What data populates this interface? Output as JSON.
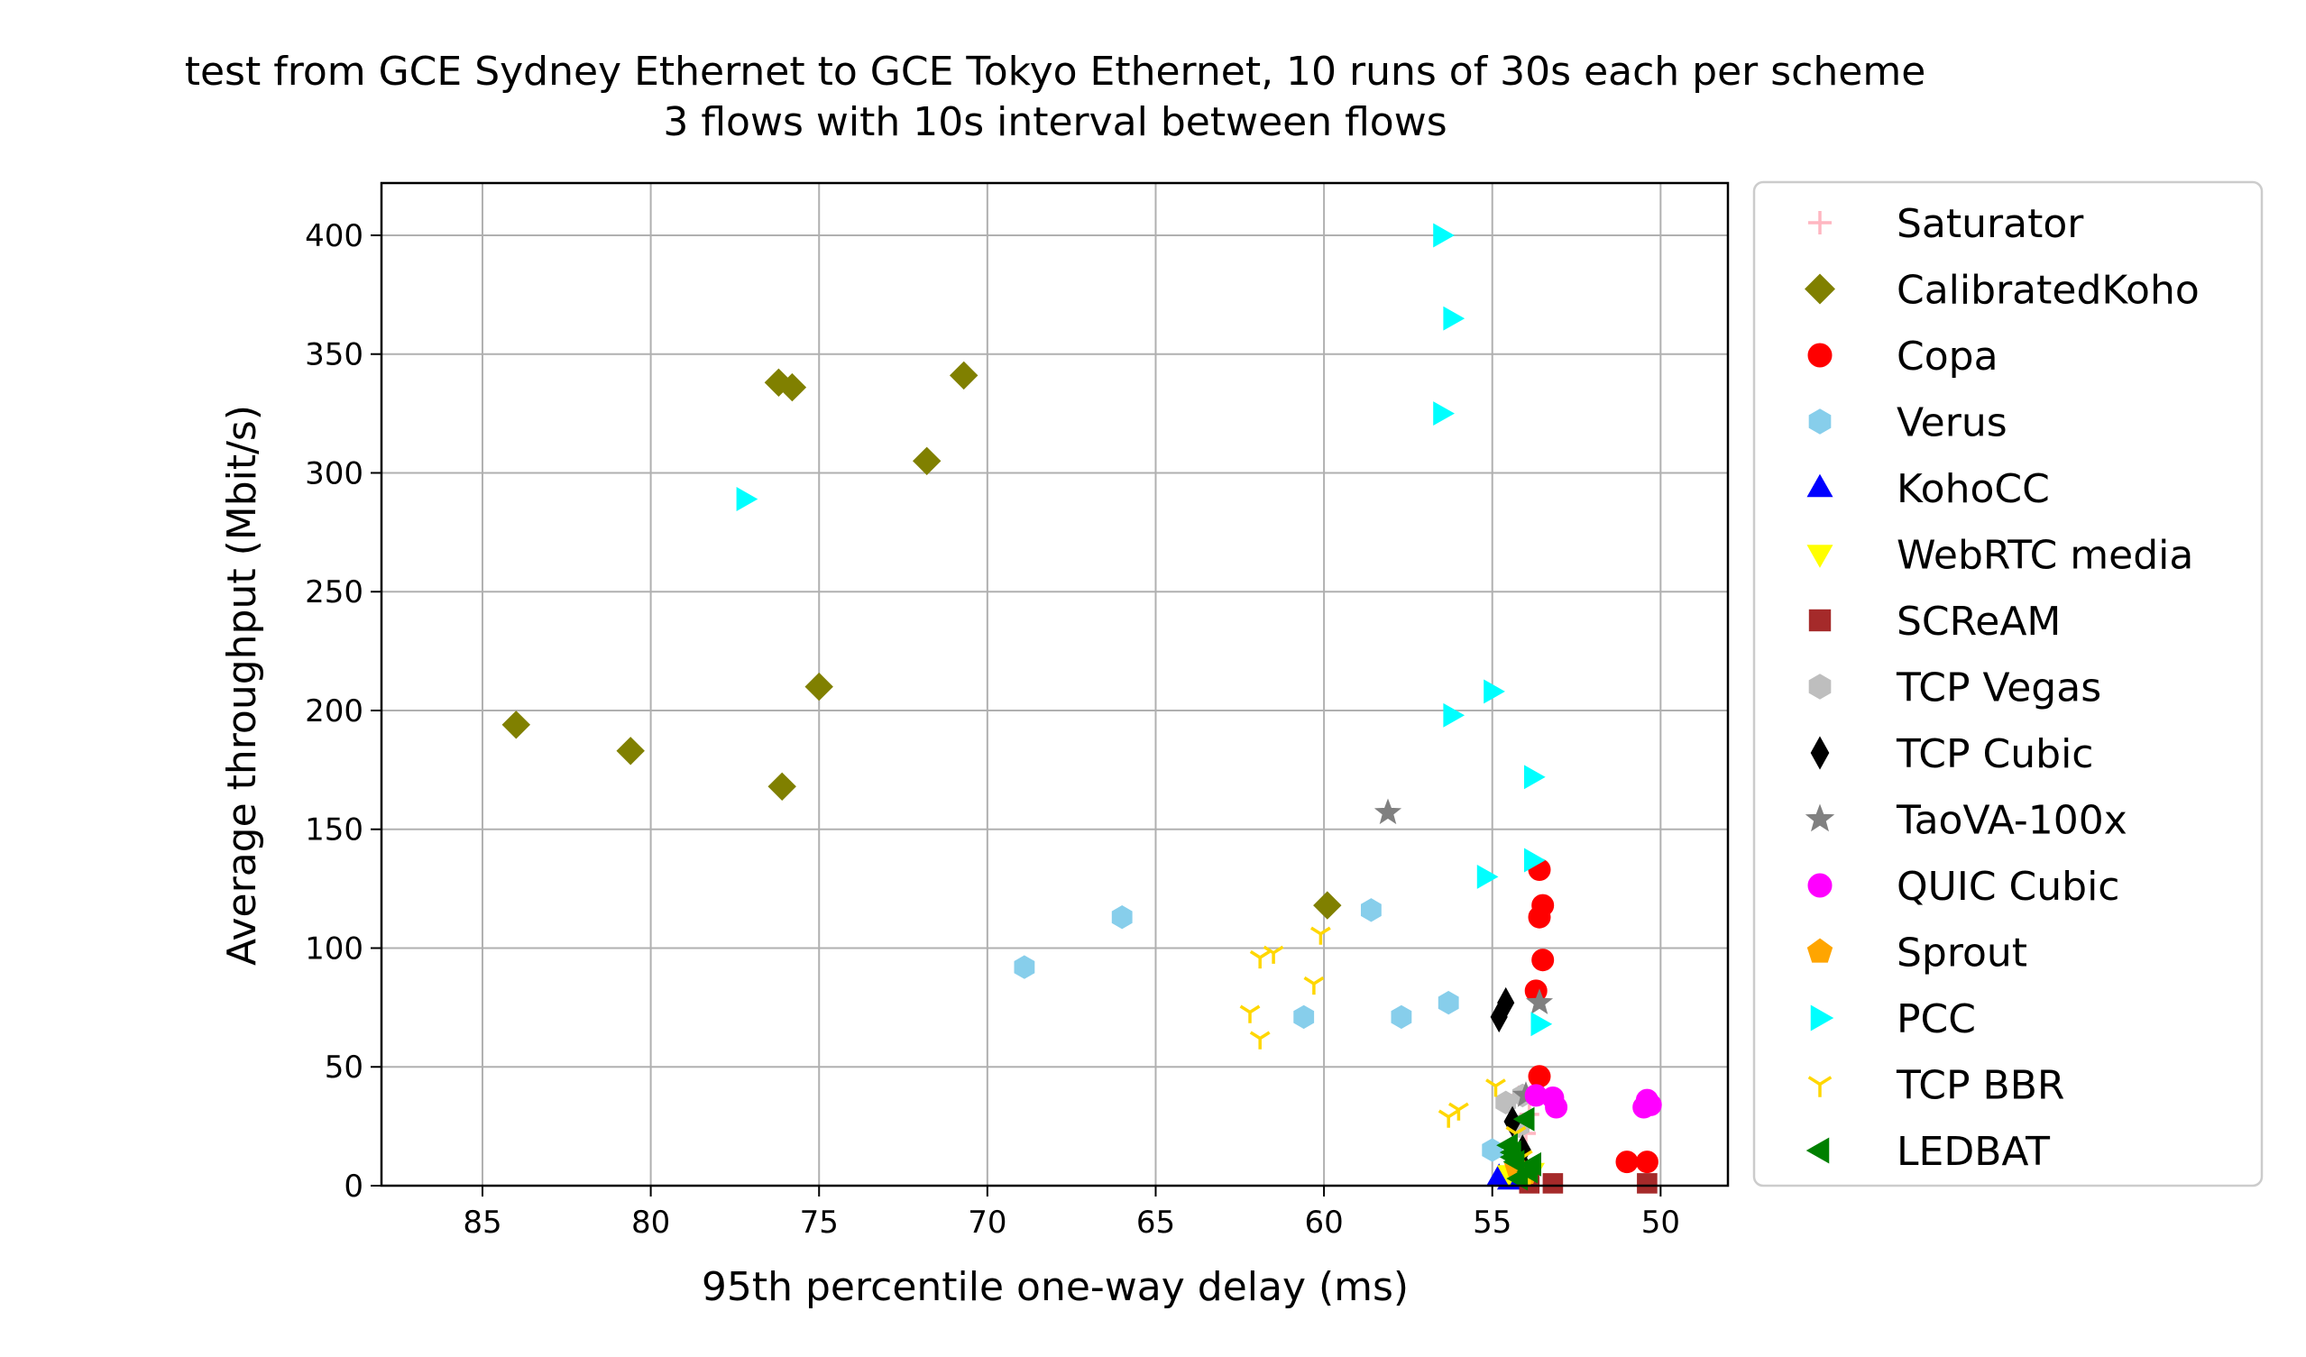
{
  "chart_data": {
    "type": "scatter",
    "title": "test from GCE Sydney Ethernet to GCE Tokyo Ethernet, 10 runs of 30s each per scheme",
    "subtitle": "3 flows with 10s interval between flows",
    "xlabel": "95th percentile one-way delay (ms)",
    "ylabel": "Average throughput (Mbit/s)",
    "x_inverted": true,
    "xlim": [
      88,
      48
    ],
    "ylim": [
      0,
      422
    ],
    "xticks": [
      85,
      80,
      75,
      70,
      65,
      60,
      55,
      50
    ],
    "yticks": [
      0,
      50,
      100,
      150,
      200,
      250,
      300,
      350,
      400
    ],
    "grid": true,
    "legend_position": "outside-right",
    "series": [
      {
        "name": "Saturator",
        "marker": "plus",
        "color": "#ffb6c1",
        "points": [
          [
            54.2,
            38
          ],
          [
            54.0,
            22
          ],
          [
            53.9,
            30
          ]
        ]
      },
      {
        "name": "CalibratedKoho",
        "marker": "diamond",
        "color": "#808000",
        "points": [
          [
            84.0,
            194
          ],
          [
            80.6,
            183
          ],
          [
            76.2,
            338
          ],
          [
            75.8,
            336
          ],
          [
            76.1,
            168
          ],
          [
            75.0,
            210
          ],
          [
            71.8,
            305
          ],
          [
            70.7,
            341
          ],
          [
            59.9,
            118
          ]
        ]
      },
      {
        "name": "Copa",
        "marker": "circle",
        "color": "#ff0000",
        "points": [
          [
            53.6,
            133
          ],
          [
            53.5,
            118
          ],
          [
            53.6,
            113
          ],
          [
            53.5,
            95
          ],
          [
            53.7,
            82
          ],
          [
            53.6,
            46
          ],
          [
            51.0,
            10
          ],
          [
            50.4,
            10
          ]
        ]
      },
      {
        "name": "Verus",
        "marker": "hexagon",
        "color": "#87ceeb",
        "points": [
          [
            68.9,
            92
          ],
          [
            66.0,
            113
          ],
          [
            60.6,
            71
          ],
          [
            58.6,
            116
          ],
          [
            57.7,
            71
          ],
          [
            56.3,
            77
          ],
          [
            55.0,
            15
          ]
        ]
      },
      {
        "name": "KohoCC",
        "marker": "triangle-up",
        "color": "#0000ff",
        "points": [
          [
            54.8,
            4
          ],
          [
            54.5,
            2
          ],
          [
            54.4,
            7
          ]
        ]
      },
      {
        "name": "WebRTC media",
        "marker": "triangle-down",
        "color": "#ffff00",
        "points": [
          [
            54.5,
            5
          ],
          [
            54.1,
            4
          ],
          [
            53.8,
            6
          ]
        ]
      },
      {
        "name": "SCReAM",
        "marker": "square",
        "color": "#a52a2a",
        "points": [
          [
            53.9,
            1
          ],
          [
            53.2,
            1
          ],
          [
            50.4,
            1
          ]
        ]
      },
      {
        "name": "TCP Vegas",
        "marker": "hexagon",
        "color": "#bebebe",
        "points": [
          [
            54.6,
            35
          ],
          [
            54.2,
            25
          ],
          [
            54.1,
            38
          ]
        ]
      },
      {
        "name": "TCP Cubic",
        "marker": "thin-diamond",
        "color": "#000000",
        "points": [
          [
            54.8,
            71
          ],
          [
            54.6,
            77
          ],
          [
            54.4,
            27
          ],
          [
            54.1,
            15
          ],
          [
            54.0,
            6
          ]
        ]
      },
      {
        "name": "TaoVA-100x",
        "marker": "star",
        "color": "#808080",
        "points": [
          [
            58.1,
            157
          ],
          [
            53.6,
            77
          ],
          [
            54.0,
            38
          ]
        ]
      },
      {
        "name": "QUIC Cubic",
        "marker": "circle",
        "color": "#ff00ff",
        "points": [
          [
            53.7,
            38
          ],
          [
            53.2,
            37
          ],
          [
            53.1,
            33
          ],
          [
            50.4,
            36
          ],
          [
            50.5,
            33
          ],
          [
            50.3,
            34
          ]
        ]
      },
      {
        "name": "Sprout",
        "marker": "pentagon",
        "color": "#ffa500",
        "points": [
          [
            54.3,
            8
          ],
          [
            54.0,
            5
          ]
        ]
      },
      {
        "name": "PCC",
        "marker": "triangle-right",
        "color": "#00ffff",
        "points": [
          [
            56.5,
            400
          ],
          [
            56.2,
            365
          ],
          [
            56.5,
            325
          ],
          [
            77.2,
            289
          ],
          [
            55.0,
            208
          ],
          [
            56.2,
            198
          ],
          [
            53.8,
            172
          ],
          [
            53.8,
            137
          ],
          [
            55.2,
            130
          ],
          [
            53.6,
            68
          ]
        ]
      },
      {
        "name": "TCP BBR",
        "marker": "tri-down",
        "color": "#ffd700",
        "points": [
          [
            61.9,
            96
          ],
          [
            61.5,
            98
          ],
          [
            60.1,
            106
          ],
          [
            60.3,
            85
          ],
          [
            62.2,
            73
          ],
          [
            61.9,
            62
          ],
          [
            56.3,
            29
          ],
          [
            56.0,
            32
          ],
          [
            54.9,
            42
          ],
          [
            54.3,
            22
          ],
          [
            54.1,
            12
          ],
          [
            53.9,
            5
          ]
        ]
      },
      {
        "name": "LEDBAT",
        "marker": "triangle-left",
        "color": "#008000",
        "points": [
          [
            54.4,
            14
          ],
          [
            54.0,
            28
          ],
          [
            54.3,
            10
          ],
          [
            54.5,
            17
          ],
          [
            53.9,
            6
          ],
          [
            54.2,
            3
          ],
          [
            54.4,
            12
          ],
          [
            53.8,
            9
          ]
        ]
      }
    ]
  }
}
